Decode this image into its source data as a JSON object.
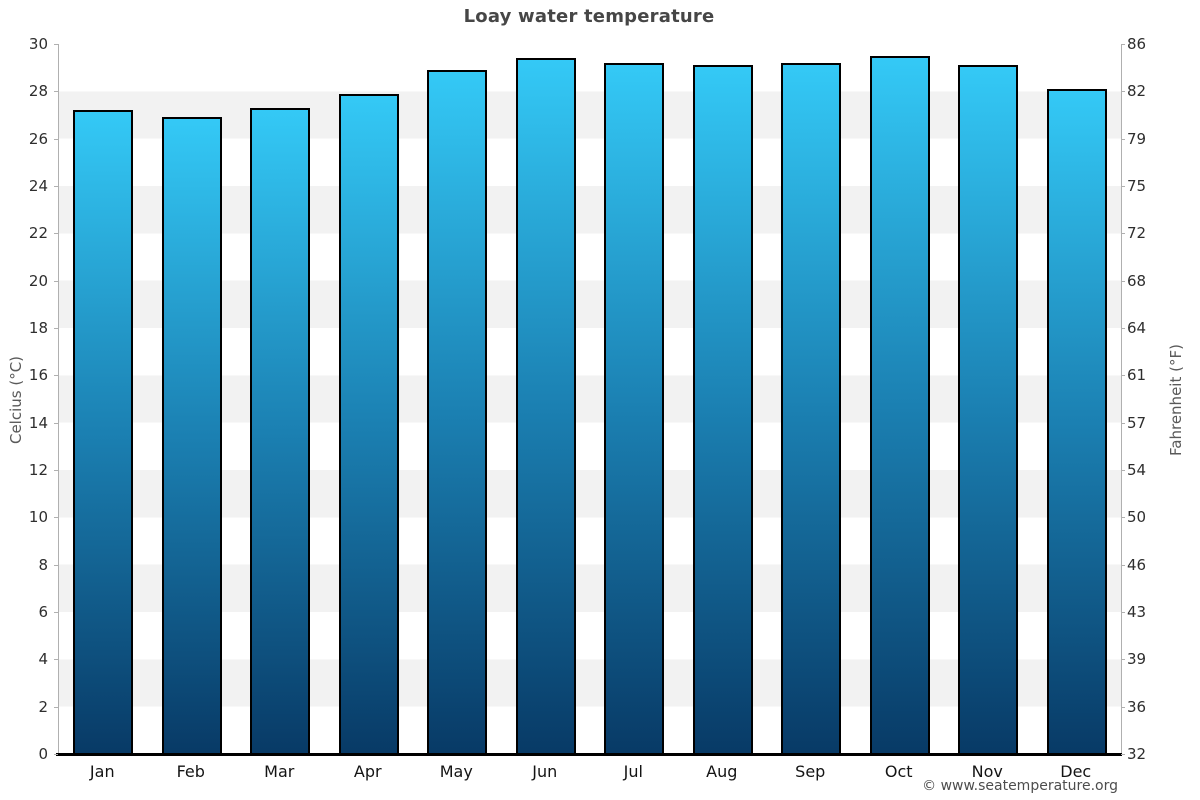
{
  "title": "Loay water temperature",
  "footer": "© www.seatemperature.org",
  "chart_data": {
    "type": "bar",
    "title": "Loay water temperature",
    "categories": [
      "Jan",
      "Feb",
      "Mar",
      "Apr",
      "May",
      "Jun",
      "Jul",
      "Aug",
      "Sep",
      "Oct",
      "Nov",
      "Dec"
    ],
    "values": [
      27.2,
      26.9,
      27.3,
      27.9,
      28.9,
      29.4,
      29.2,
      29.1,
      29.2,
      29.5,
      29.1,
      28.1
    ],
    "xlabel": "",
    "ylabel_left": "Celcius (°C)",
    "ylabel_right": "Fahrenheit (°F)",
    "ylim": [
      0,
      30
    ],
    "yticks_celsius": [
      30,
      28,
      26,
      24,
      22,
      20,
      18,
      16,
      14,
      12,
      10,
      8,
      6,
      4,
      2,
      0
    ],
    "yticks_fahrenheit": [
      86,
      82,
      79,
      75,
      72,
      68,
      64,
      61,
      57,
      54,
      50,
      46,
      43,
      39,
      36,
      32
    ],
    "grid": "alternating-horizontal-bands-every-2C",
    "legend": "none",
    "colors": {
      "bar_top": "#34c9f6",
      "bar_mid": "#1b80b2",
      "bar_bottom": "#083a66",
      "bar_border": "#000000",
      "band": "#f2f2f2",
      "background": "#ffffff",
      "axis_line": "#b0b0b0",
      "x_axis_line": "#000000",
      "title_text": "#464646",
      "tick_text": "#2e2e2e"
    }
  }
}
